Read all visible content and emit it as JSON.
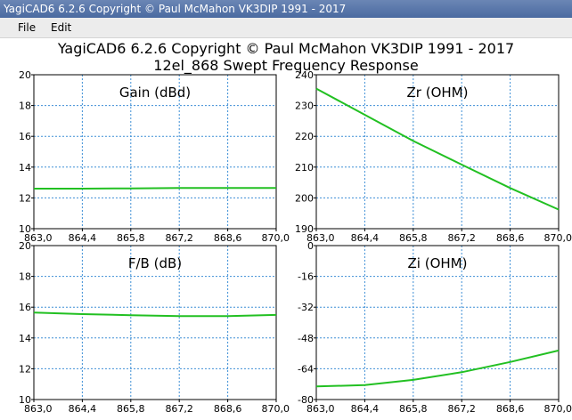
{
  "window": {
    "title": "YagiCAD6 6.2.6  Copyright © Paul McMahon VK3DIP 1991 - 2017"
  },
  "menu": {
    "items": [
      {
        "label": "File"
      },
      {
        "label": "Edit"
      }
    ]
  },
  "heading": {
    "line1": "YagiCAD6 6.2.6   Copyright © Paul McMahon VK3DIP 1991 - 2017",
    "line2": "12el_868 Swept Frequency Response"
  },
  "colors": {
    "trace": "#22c022",
    "grid": "#3e8fd6",
    "axis": "#000000"
  },
  "chart_data": [
    {
      "type": "line",
      "title": "Gain (dBd)",
      "xlim": [
        863.0,
        870.0
      ],
      "ylim": [
        10,
        20
      ],
      "x_ticks": [
        "863,0",
        "864,4",
        "865,8",
        "867,2",
        "868,6",
        "870,0"
      ],
      "y_ticks": [
        "10",
        "12",
        "14",
        "16",
        "18",
        "20"
      ],
      "x": [
        863.0,
        864.4,
        865.8,
        867.2,
        868.6,
        870.0
      ],
      "y": [
        12.6,
        12.6,
        12.62,
        12.65,
        12.65,
        12.65
      ]
    },
    {
      "type": "line",
      "title": "Zr (OHM)",
      "xlim": [
        863.0,
        870.0
      ],
      "ylim": [
        190,
        240
      ],
      "x_ticks": [
        "863,0",
        "864,4",
        "865,8",
        "867,2",
        "868,6",
        "870,0"
      ],
      "y_ticks": [
        "190",
        "200",
        "210",
        "220",
        "230",
        "240"
      ],
      "x": [
        863.0,
        864.4,
        865.8,
        867.2,
        868.6,
        870.0
      ],
      "y": [
        235.5,
        227.0,
        218.5,
        210.8,
        203.2,
        196.2
      ]
    },
    {
      "type": "line",
      "title": "F/B (dB)",
      "xlim": [
        863.0,
        870.0
      ],
      "ylim": [
        10,
        20
      ],
      "x_ticks": [
        "863,0",
        "864,4",
        "865,8",
        "867,2",
        "868,6",
        "870,0"
      ],
      "y_ticks": [
        "10",
        "12",
        "14",
        "16",
        "18",
        "20"
      ],
      "x": [
        863.0,
        864.4,
        865.8,
        867.2,
        868.6,
        870.0
      ],
      "y": [
        15.65,
        15.55,
        15.48,
        15.42,
        15.42,
        15.5
      ]
    },
    {
      "type": "line",
      "title": "Zi (OHM)",
      "xlim": [
        863.0,
        870.0
      ],
      "ylim": [
        -80,
        0
      ],
      "x_ticks": [
        "863,0",
        "864,4",
        "865,8",
        "867,2",
        "868,6",
        "870,0"
      ],
      "y_ticks": [
        "-80",
        "-64",
        "-48",
        "-32",
        "-16",
        "0"
      ],
      "x": [
        863.0,
        864.4,
        865.8,
        867.2,
        868.6,
        870.0
      ],
      "y": [
        -73.2,
        -72.5,
        -69.8,
        -65.8,
        -60.5,
        -54.5
      ]
    }
  ]
}
